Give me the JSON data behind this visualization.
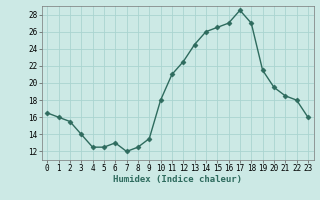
{
  "x": [
    0,
    1,
    2,
    3,
    4,
    5,
    6,
    7,
    8,
    9,
    10,
    11,
    12,
    13,
    14,
    15,
    16,
    17,
    18,
    19,
    20,
    21,
    22,
    23
  ],
  "y": [
    16.5,
    16.0,
    15.5,
    14.0,
    12.5,
    12.5,
    13.0,
    12.0,
    12.5,
    13.5,
    18.0,
    21.0,
    22.5,
    24.5,
    26.0,
    26.5,
    27.0,
    28.5,
    27.0,
    21.5,
    19.5,
    18.5,
    18.0,
    16.0
  ],
  "line_color": "#2e6b5e",
  "marker": "D",
  "marker_size": 2.5,
  "bg_color": "#cce9e5",
  "grid_color": "#aad4d0",
  "xlabel": "Humidex (Indice chaleur)",
  "xlim": [
    -0.5,
    23.5
  ],
  "ylim": [
    11,
    29
  ],
  "yticks": [
    12,
    14,
    16,
    18,
    20,
    22,
    24,
    26,
    28
  ],
  "xticks": [
    0,
    1,
    2,
    3,
    4,
    5,
    6,
    7,
    8,
    9,
    10,
    11,
    12,
    13,
    14,
    15,
    16,
    17,
    18,
    19,
    20,
    21,
    22,
    23
  ],
  "label_fontsize": 6.5,
  "tick_fontsize": 5.5,
  "line_width": 1.0
}
